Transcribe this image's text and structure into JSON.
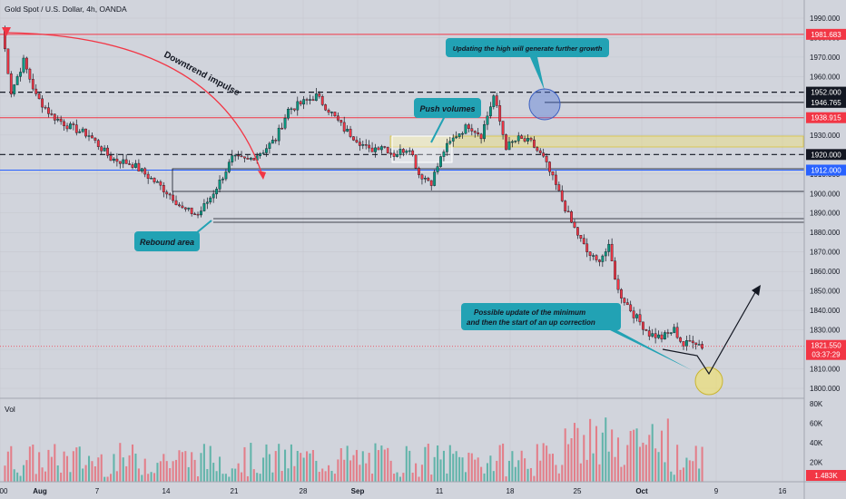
{
  "header": {
    "title": "Gold Spot / U.S. Dollar, 4h, OANDA"
  },
  "price_axis": {
    "ticks": [
      "1990.000",
      "1980.000",
      "1970.000",
      "1960.000",
      "1950.000",
      "1940.000",
      "1930.000",
      "1920.000",
      "1910.000",
      "1900.000",
      "1890.000",
      "1880.000",
      "1870.000",
      "1860.000",
      "1850.000",
      "1840.000",
      "1830.000",
      "1820.000",
      "1810.000",
      "1800.000"
    ],
    "tick_values": [
      1990,
      1980,
      1970,
      1960,
      1950,
      1940,
      1930,
      1920,
      1910,
      1900,
      1890,
      1880,
      1870,
      1860,
      1850,
      1840,
      1830,
      1820,
      1810,
      1800
    ]
  },
  "levels": [
    {
      "value": 1981.683,
      "label": "1981.683",
      "color": "#f23645",
      "style": "solid"
    },
    {
      "value": 1952.0,
      "label": "1952.000",
      "color": "#131722",
      "style": "dashed"
    },
    {
      "value": 1946.765,
      "label": "1946.765",
      "color": "#131722",
      "style": "solid"
    },
    {
      "value": 1938.915,
      "label": "1938.915",
      "color": "#f23645",
      "style": "solid"
    },
    {
      "value": 1920.0,
      "label": "1920.000",
      "color": "#131722",
      "style": "dashed"
    },
    {
      "value": 1912.0,
      "label": "1912.000",
      "color": "#2962ff",
      "style": "solid"
    }
  ],
  "current_price": {
    "value": 1821.55,
    "label": "1821.550",
    "countdown": "03:37:29",
    "color": "#f23645"
  },
  "volume_pane": {
    "title": "Vol",
    "ticks": [
      "80K",
      "60K",
      "40K",
      "20K"
    ],
    "tick_values": [
      80000,
      60000,
      40000,
      20000
    ],
    "current_label": "1.483K"
  },
  "time_axis": {
    "labels": [
      "00",
      "Aug",
      "7",
      "14",
      "21",
      "28",
      "Sep",
      "11",
      "18",
      "25",
      "Oct",
      "9",
      "16"
    ]
  },
  "annotations": {
    "downtrend": "Downtrend impulse",
    "rebound": "Rebound area",
    "push": "Push volumes",
    "high": "Updating the high will generate further growth",
    "minimum_line1": "Possible update of the minimum",
    "minimum_line2": "and then the start of an up correction"
  },
  "colors": {
    "up": "#089981",
    "down": "#f23645",
    "callout_bg": "#22a2b4",
    "callout_text": "#131722",
    "zone": "#f5e15a",
    "circle_blue": "#5b7fd6",
    "circle_yellow": "#f5e15a"
  },
  "chart_data": {
    "type": "candlestick",
    "title": "Gold Spot / U.S. Dollar, 4h, OANDA",
    "price_range": [
      1795,
      1995
    ],
    "volume_range": [
      0,
      90000
    ],
    "path_keypoints": [
      [
        0,
        1985
      ],
      [
        3,
        1952
      ],
      [
        7,
        1968
      ],
      [
        11,
        1950
      ],
      [
        16,
        1940
      ],
      [
        22,
        1934
      ],
      [
        28,
        1930
      ],
      [
        35,
        1918
      ],
      [
        42,
        1915
      ],
      [
        50,
        1905
      ],
      [
        55,
        1898
      ],
      [
        58,
        1892
      ],
      [
        63,
        1889
      ],
      [
        67,
        1898
      ],
      [
        70,
        1906
      ],
      [
        74,
        1918
      ],
      [
        79,
        1917
      ],
      [
        84,
        1922
      ],
      [
        88,
        1928
      ],
      [
        92,
        1943
      ],
      [
        96,
        1946
      ],
      [
        101,
        1950
      ],
      [
        105,
        1943
      ],
      [
        110,
        1933
      ],
      [
        114,
        1928
      ],
      [
        118,
        1922
      ],
      [
        122,
        1925
      ],
      [
        126,
        1920
      ],
      [
        131,
        1924
      ],
      [
        134,
        1910
      ],
      [
        138,
        1906
      ],
      [
        142,
        1922
      ],
      [
        146,
        1930
      ],
      [
        150,
        1935
      ],
      [
        154,
        1930
      ],
      [
        158,
        1950
      ],
      [
        162,
        1924
      ],
      [
        166,
        1928
      ],
      [
        170,
        1926
      ],
      [
        174,
        1918
      ],
      [
        178,
        1904
      ],
      [
        183,
        1885
      ],
      [
        188,
        1870
      ],
      [
        191,
        1865
      ],
      [
        195,
        1872
      ],
      [
        198,
        1850
      ],
      [
        203,
        1838
      ],
      [
        208,
        1828
      ],
      [
        212,
        1826
      ],
      [
        216,
        1830
      ],
      [
        219,
        1822
      ],
      [
        222,
        1825
      ],
      [
        225,
        1821.5
      ]
    ]
  }
}
